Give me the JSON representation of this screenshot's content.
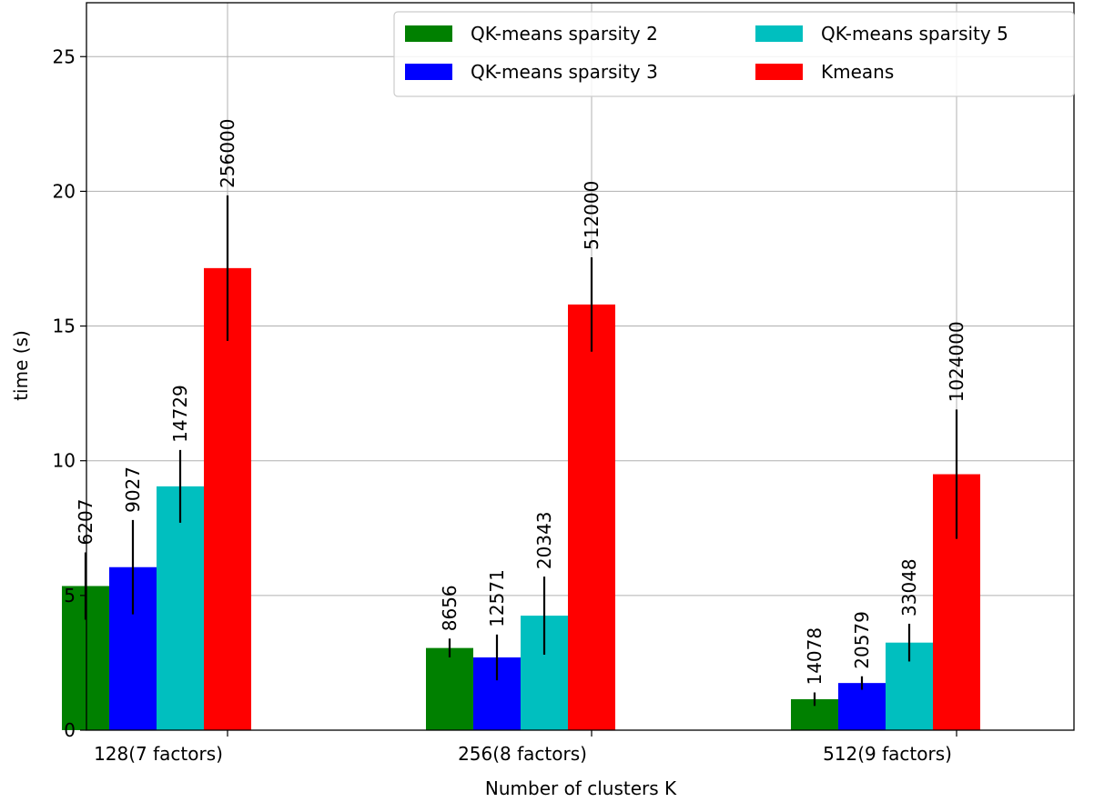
{
  "chart_data": {
    "type": "bar",
    "title": "",
    "xlabel": "Number of clusters K",
    "ylabel": "time (s)",
    "ylim": [
      0,
      27
    ],
    "yticks": [
      0,
      5,
      10,
      15,
      20,
      25
    ],
    "grid": true,
    "legend_position": "top-right",
    "legend_columns": 2,
    "categories": [
      "128(7 factors)",
      "256(8 factors)",
      "512(9 factors)"
    ],
    "series": [
      {
        "name": "QK-means sparsity 2",
        "color": "#008000",
        "values": [
          5.35,
          3.05,
          1.15
        ],
        "errors": [
          1.25,
          0.35,
          0.25
        ],
        "labels": [
          "6207",
          "8656",
          "14078"
        ]
      },
      {
        "name": "QK-means sparsity 3",
        "color": "#0000ff",
        "values": [
          6.05,
          2.7,
          1.75
        ],
        "errors": [
          1.75,
          0.85,
          0.25
        ],
        "labels": [
          "9027",
          "12571",
          "20579"
        ]
      },
      {
        "name": "QK-means sparsity 5",
        "color": "#00bfbf",
        "values": [
          9.05,
          4.25,
          3.25
        ],
        "errors": [
          1.35,
          1.45,
          0.7
        ],
        "labels": [
          "14729",
          "20343",
          "33048"
        ]
      },
      {
        "name": "Kmeans",
        "color": "#ff0000",
        "values": [
          17.15,
          15.8,
          9.5
        ],
        "errors": [
          2.7,
          1.75,
          2.4
        ],
        "labels": [
          "256000",
          "512000",
          "1024000"
        ]
      }
    ]
  }
}
